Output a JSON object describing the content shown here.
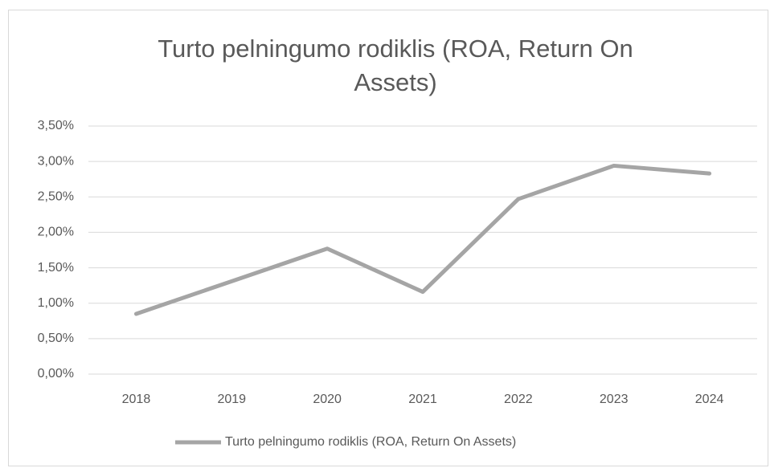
{
  "chart_data": {
    "type": "line",
    "title": "Turto pelningumo rodiklis (ROA, Return On Assets)",
    "categories": [
      "2018",
      "2019",
      "2020",
      "2021",
      "2022",
      "2023",
      "2024"
    ],
    "series": [
      {
        "name": "Turto pelningumo rodiklis (ROA, Return On Assets)",
        "color": "#a5a5a5",
        "values": [
          0.85,
          1.31,
          1.77,
          1.16,
          2.47,
          2.94,
          2.83
        ]
      }
    ],
    "ylim": [
      0,
      3.5
    ],
    "yticks": [
      {
        "value": 0,
        "label": "0,00%"
      },
      {
        "value": 0.5,
        "label": "0,50%"
      },
      {
        "value": 1,
        "label": "1,00%"
      },
      {
        "value": 1.5,
        "label": "1,50%"
      },
      {
        "value": 2,
        "label": "2,00%"
      },
      {
        "value": 2.5,
        "label": "2,50%"
      },
      {
        "value": 3,
        "label": "3,00%"
      },
      {
        "value": 3.5,
        "label": "3,50%"
      }
    ],
    "grid": true,
    "legend": "bottom"
  }
}
